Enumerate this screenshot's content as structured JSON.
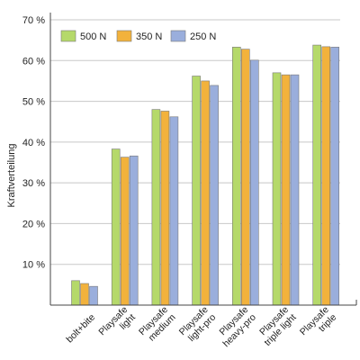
{
  "chart_data": {
    "type": "bar",
    "categories": [
      [
        "bolt+bite"
      ],
      [
        "Playsafe",
        "light"
      ],
      [
        "Playsafe",
        "medium"
      ],
      [
        "Playsafe",
        "light-pro"
      ],
      [
        "Playsafe",
        "heavy-pro"
      ],
      [
        "Playsafe",
        "triple light"
      ],
      [
        "Playsafe",
        "triple"
      ]
    ],
    "series": [
      {
        "name": "500 N",
        "color": "#b5d96a",
        "values": [
          6.0,
          38.3,
          48.0,
          56.2,
          63.3,
          57.0,
          63.8
        ]
      },
      {
        "name": "350 N",
        "color": "#f2b23c",
        "values": [
          5.3,
          36.3,
          47.6,
          55.0,
          62.8,
          56.5,
          63.4
        ]
      },
      {
        "name": "250 N",
        "color": "#9aaedc",
        "values": [
          4.6,
          36.6,
          46.2,
          53.9,
          60.1,
          56.5,
          63.3
        ]
      }
    ],
    "ylabel": "Kraftverteilung",
    "ylim": [
      0,
      70
    ],
    "yticks": [
      10,
      20,
      30,
      40,
      50,
      60,
      70
    ],
    "ytick_labels": [
      "10 %",
      "20 %",
      "30 %",
      "40 %",
      "50 %",
      "60 %",
      "70 %"
    ],
    "grid": "horizontal",
    "legend_position": "top-left"
  }
}
